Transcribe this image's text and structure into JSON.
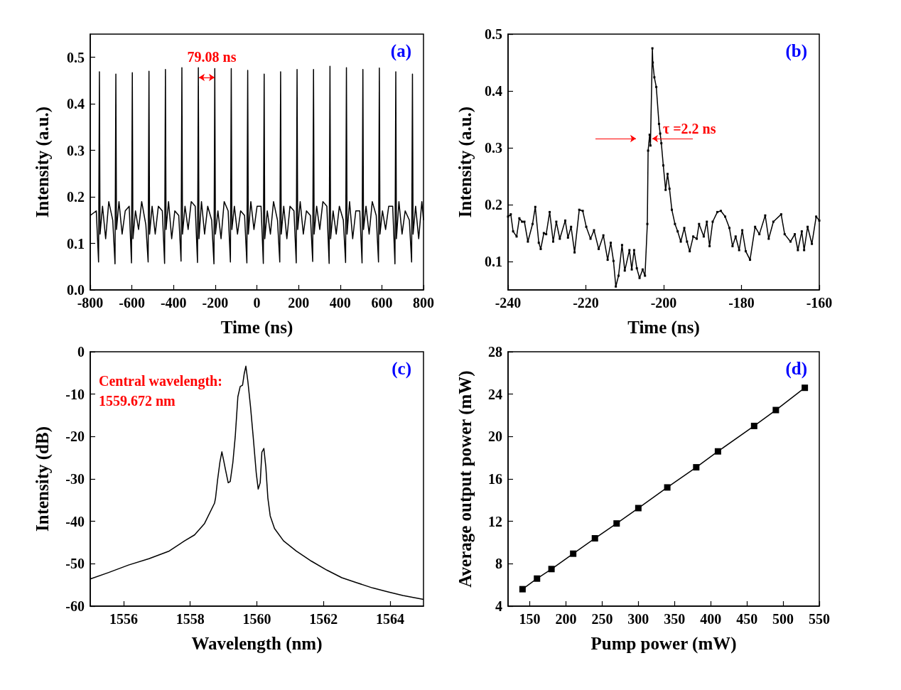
{
  "chart_data": [
    {
      "type": "line",
      "title": "(a)",
      "xlabel": "Time (ns)",
      "ylabel": "Intensity (a.u.)",
      "xlim": [
        -800,
        800
      ],
      "xticks": [
        -800,
        -600,
        -400,
        -200,
        0,
        200,
        400,
        600,
        800
      ],
      "ylim": [
        0,
        0.55
      ],
      "yticks": [
        {
          "value": 0,
          "label": "0.0"
        },
        0.1,
        0.2,
        0.3,
        0.4,
        0.5
      ],
      "marker": "none",
      "annotations": [
        "79.08 ns"
      ],
      "series": [
        {
          "color": "#000000",
          "x": [
            -800,
            -771,
            -760,
            -756,
            -753,
            -741,
            -726,
            -711,
            -692,
            -681,
            -677,
            -674,
            -662,
            -647,
            -632,
            -613,
            -602,
            -598,
            -595,
            -583,
            -568,
            -553,
            -533,
            -522,
            -518,
            -515,
            -503,
            -488,
            -473,
            -454,
            -443,
            -439,
            -436,
            -424,
            -409,
            -394,
            -375,
            -364,
            -360,
            -357,
            -345,
            -330,
            -315,
            -296,
            -285,
            -281,
            -278,
            -266,
            -251,
            -236,
            -217,
            -206,
            -202,
            -199,
            -187,
            -172,
            -157,
            -138,
            -127,
            -123,
            -120,
            -108,
            -93,
            -78,
            -59,
            -48,
            -44,
            -41,
            -29,
            -14,
            1,
            20,
            31,
            35,
            38,
            50,
            65,
            80,
            99,
            110,
            114,
            117,
            129,
            144,
            159,
            178,
            189,
            193,
            196,
            208,
            223,
            238,
            257,
            268,
            272,
            275,
            287,
            302,
            317,
            336,
            347,
            351,
            354,
            366,
            381,
            396,
            415,
            426,
            430,
            433,
            445,
            460,
            475,
            494,
            505,
            509,
            512,
            524,
            539,
            554,
            573,
            584,
            588,
            591,
            603,
            618,
            633,
            652,
            663,
            667,
            670,
            682,
            697,
            712,
            732,
            743,
            747,
            750,
            762,
            777,
            792,
            800
          ],
          "values": [
            0.16,
            0.17,
            0.06,
            0.469,
            0.12,
            0.18,
            0.11,
            0.19,
            0.15,
            0.056,
            0.464,
            0.13,
            0.19,
            0.12,
            0.17,
            0.18,
            0.058,
            0.467,
            0.11,
            0.17,
            0.13,
            0.19,
            0.14,
            0.06,
            0.47,
            0.12,
            0.18,
            0.12,
            0.18,
            0.17,
            0.057,
            0.474,
            0.13,
            0.19,
            0.11,
            0.17,
            0.16,
            0.062,
            0.478,
            0.12,
            0.18,
            0.13,
            0.19,
            0.18,
            0.059,
            0.478,
            0.11,
            0.19,
            0.12,
            0.18,
            0.15,
            0.056,
            0.476,
            0.12,
            0.17,
            0.11,
            0.19,
            0.17,
            0.06,
            0.476,
            0.13,
            0.18,
            0.12,
            0.17,
            0.16,
            0.058,
            0.472,
            0.12,
            0.19,
            0.13,
            0.18,
            0.18,
            0.057,
            0.464,
            0.11,
            0.17,
            0.12,
            0.19,
            0.15,
            0.06,
            0.469,
            0.12,
            0.18,
            0.11,
            0.18,
            0.17,
            0.058,
            0.474,
            0.13,
            0.19,
            0.12,
            0.17,
            0.16,
            0.061,
            0.474,
            0.12,
            0.18,
            0.13,
            0.19,
            0.18,
            0.057,
            0.481,
            0.11,
            0.17,
            0.12,
            0.18,
            0.15,
            0.059,
            0.478,
            0.12,
            0.19,
            0.11,
            0.17,
            0.17,
            0.058,
            0.474,
            0.13,
            0.18,
            0.12,
            0.19,
            0.16,
            0.06,
            0.477,
            0.12,
            0.17,
            0.13,
            0.18,
            0.18,
            0.056,
            0.469,
            0.11,
            0.19,
            0.12,
            0.17,
            0.15,
            0.06,
            0.464,
            0.12,
            0.18,
            0.11,
            0.19,
            0.15
          ]
        }
      ]
    },
    {
      "type": "line",
      "title": "(b)",
      "xlabel": "Time (ns)",
      "ylabel": "Intensity (a.u.)",
      "xlim": [
        -240,
        -160
      ],
      "xticks": [
        -240,
        -220,
        -200,
        -180,
        -160
      ],
      "ylim": [
        0.05,
        0.5
      ],
      "yticks": [
        0.1,
        0.2,
        0.3,
        0.4,
        0.5
      ],
      "marker": "square",
      "annotations": [
        "τ =2.2 ns"
      ],
      "series": [
        {
          "color": "#000000",
          "x": [
            -240,
            -239.3,
            -238.7,
            -237.8,
            -237.1,
            -236.4,
            -235.8,
            -234.9,
            -233.7,
            -233.0,
            -232.1,
            -231.6,
            -230.8,
            -230.2,
            -229.3,
            -228.4,
            -227.6,
            -226.7,
            -225.3,
            -224.6,
            -223.8,
            -222.9,
            -221.7,
            -220.8,
            -219.9,
            -218.8,
            -217.9,
            -216.7,
            -215.5,
            -214.4,
            -213.6,
            -212.9,
            -212.3,
            -211.6,
            -210.7,
            -210.0,
            -208.8,
            -208.2,
            -207.6,
            -206.9,
            -206.2,
            -205.4,
            -204.8,
            -204.2,
            -204.0,
            -203.6,
            -203.4,
            -202.9,
            -202.8,
            -202.4,
            -201.9,
            -201.2,
            -200.9,
            -200.6,
            -200.1,
            -199.5,
            -199.0,
            -198.5,
            -197.9,
            -197.1,
            -196.4,
            -195.6,
            -194.7,
            -194.0,
            -193.3,
            -192.4,
            -191.5,
            -190.9,
            -189.7,
            -188.9,
            -188.2,
            -187.4,
            -186.2,
            -185.3,
            -184.2,
            -183.1,
            -182.3,
            -181.5,
            -180.6,
            -179.8,
            -178.9,
            -177.8,
            -176.5,
            -175.4,
            -173.9,
            -173.0,
            -171.8,
            -169.8,
            -168.9,
            -167.4,
            -166.3,
            -165.5,
            -164.5,
            -163.9,
            -163.0,
            -161.9,
            -160.8,
            -160.0
          ],
          "values": [
            0.179,
            0.183,
            0.153,
            0.144,
            0.176,
            0.17,
            0.17,
            0.135,
            0.166,
            0.196,
            0.133,
            0.122,
            0.15,
            0.148,
            0.187,
            0.135,
            0.17,
            0.14,
            0.172,
            0.142,
            0.161,
            0.116,
            0.191,
            0.189,
            0.161,
            0.14,
            0.155,
            0.122,
            0.146,
            0.103,
            0.133,
            0.101,
            0.056,
            0.075,
            0.129,
            0.084,
            0.12,
            0.086,
            0.12,
            0.088,
            0.071,
            0.086,
            0.075,
            0.166,
            0.295,
            0.323,
            0.304,
            0.475,
            0.45,
            0.424,
            0.407,
            0.342,
            0.325,
            0.308,
            0.269,
            0.226,
            0.254,
            0.228,
            0.191,
            0.166,
            0.153,
            0.135,
            0.159,
            0.135,
            0.118,
            0.144,
            0.14,
            0.166,
            0.144,
            0.17,
            0.127,
            0.17,
            0.187,
            0.189,
            0.179,
            0.159,
            0.127,
            0.144,
            0.12,
            0.155,
            0.118,
            0.103,
            0.161,
            0.148,
            0.181,
            0.14,
            0.17,
            0.183,
            0.148,
            0.135,
            0.148,
            0.12,
            0.153,
            0.12,
            0.161,
            0.131,
            0.179,
            0.172
          ]
        }
      ]
    },
    {
      "type": "line",
      "title": "(c)",
      "xlabel": "Wavelength (nm)",
      "ylabel": "Intensity (dB)",
      "xlim": [
        1555,
        1565
      ],
      "xticks": [
        1556,
        1558,
        1560,
        1562,
        1564
      ],
      "ylim": [
        -60,
        0
      ],
      "yticks": [
        -60,
        -50,
        -40,
        -30,
        -20,
        -10,
        0
      ],
      "marker": "none",
      "annotations": [
        "Central wavelength:\n1559.672 nm"
      ],
      "series": [
        {
          "color": "#000000",
          "x": [
            1555.0,
            1555.54,
            1556.15,
            1556.76,
            1557.37,
            1557.83,
            1558.13,
            1558.43,
            1558.73,
            1558.76,
            1558.82,
            1558.89,
            1558.95,
            1559.0,
            1559.06,
            1559.14,
            1559.2,
            1559.28,
            1559.35,
            1559.43,
            1559.5,
            1559.57,
            1559.62,
            1559.67,
            1559.73,
            1559.81,
            1559.89,
            1559.98,
            1560.04,
            1560.1,
            1560.15,
            1560.21,
            1560.27,
            1560.33,
            1560.4,
            1560.53,
            1560.8,
            1561.18,
            1561.64,
            1562.1,
            1562.55,
            1563.01,
            1563.47,
            1563.92,
            1564.38,
            1565.0
          ],
          "values": [
            -53.6,
            -52.1,
            -50.3,
            -48.8,
            -47.0,
            -44.6,
            -43.2,
            -40.5,
            -35.7,
            -34.5,
            -30.3,
            -26.1,
            -23.6,
            -25.5,
            -27.9,
            -30.9,
            -30.6,
            -26.1,
            -20.1,
            -10.6,
            -8.2,
            -7.9,
            -5.2,
            -3.4,
            -7.0,
            -13.0,
            -20.1,
            -28.5,
            -32.4,
            -30.9,
            -23.7,
            -22.8,
            -27.3,
            -34.5,
            -38.7,
            -41.7,
            -44.6,
            -47.0,
            -49.4,
            -51.5,
            -53.3,
            -54.5,
            -55.7,
            -56.6,
            -57.5,
            -58.4
          ]
        }
      ]
    },
    {
      "type": "line",
      "title": "(d)",
      "xlabel": "Pump power (mW)",
      "ylabel": "Average output power (mW)",
      "xlim": [
        120,
        550
      ],
      "xticks": [
        150,
        200,
        250,
        300,
        350,
        400,
        450,
        500,
        550
      ],
      "ylim": [
        4,
        28
      ],
      "yticks": [
        4,
        8,
        12,
        16,
        20,
        24,
        28
      ],
      "marker": "square",
      "series": [
        {
          "color": "#000000",
          "x": [
            140,
            160,
            180,
            210,
            240,
            270,
            300,
            340,
            380,
            410,
            460,
            490,
            530
          ],
          "values": [
            5.6,
            6.6,
            7.5,
            8.95,
            10.4,
            11.8,
            13.25,
            15.2,
            17.1,
            18.6,
            21.0,
            22.5,
            24.6
          ]
        }
      ]
    }
  ]
}
